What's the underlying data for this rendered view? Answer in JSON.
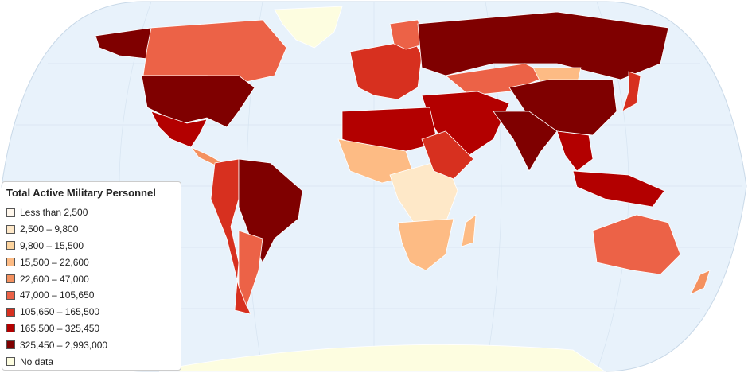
{
  "legend": {
    "title": "Total Active Military Personnel",
    "items": [
      {
        "label": "Less than 2,500",
        "color": "#fff7ec"
      },
      {
        "label": "2,500 – 9,800",
        "color": "#fee8c8"
      },
      {
        "label": "9,800 – 15,500",
        "color": "#fdd49e"
      },
      {
        "label": "15,500 – 22,600",
        "color": "#fdbb84"
      },
      {
        "label": "22,600 – 47,000",
        "color": "#f4915f"
      },
      {
        "label": "47,000 – 105,650",
        "color": "#ec6247"
      },
      {
        "label": "105,650 – 165,500",
        "color": "#d7301f"
      },
      {
        "label": "165,500 – 325,450",
        "color": "#b30000"
      },
      {
        "label": "325,450 – 2,993,000",
        "color": "#7f0000"
      },
      {
        "label": "No data",
        "color": "#fdfde0"
      }
    ]
  }
}
